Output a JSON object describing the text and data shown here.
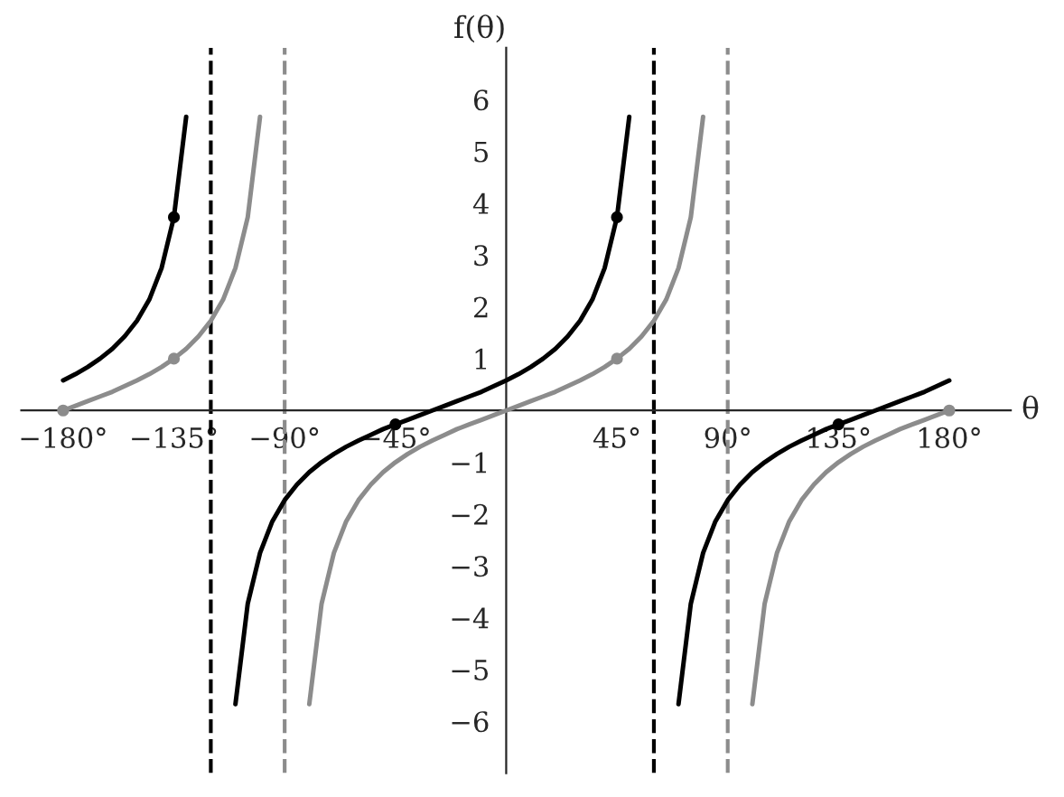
{
  "chart_data": {
    "type": "line",
    "xlabel": "θ",
    "ylabel": "f(θ)",
    "xlim": [
      -197,
      205
    ],
    "ylim": [
      -7,
      7
    ],
    "xticks": [
      {
        "value": -180,
        "label": "−180°"
      },
      {
        "value": -135,
        "label": "−135°"
      },
      {
        "value": -90,
        "label": "−90°"
      },
      {
        "value": -45,
        "label": "−45°"
      },
      {
        "value": 45,
        "label": "45°"
      },
      {
        "value": 90,
        "label": "90°"
      },
      {
        "value": 135,
        "label": "135°"
      },
      {
        "value": 180,
        "label": "180°"
      }
    ],
    "yticks": [
      {
        "value": -6,
        "label": "−6"
      },
      {
        "value": -5,
        "label": "−5"
      },
      {
        "value": -4,
        "label": "−4"
      },
      {
        "value": -3,
        "label": "−3"
      },
      {
        "value": -2,
        "label": "−2"
      },
      {
        "value": -1,
        "label": "−1"
      },
      1,
      2,
      3,
      4,
      5,
      6
    ],
    "grid": false,
    "legend": false,
    "line_style": "solid",
    "series": [
      {
        "color": "#8c8c8c",
        "x": [
          -180,
          -175,
          -170,
          -165,
          -160,
          -155,
          -150,
          -145,
          -140,
          -135,
          -130,
          -125,
          -120,
          -115,
          -110,
          -105,
          -100,
          -90,
          -80,
          -75,
          -70,
          -65,
          -60,
          -55,
          -50,
          -45,
          -40,
          -35,
          -30,
          -25,
          -20,
          -15,
          -10,
          -5,
          0,
          5,
          10,
          15,
          20,
          25,
          30,
          35,
          40,
          45,
          50,
          55,
          60,
          65,
          70,
          75,
          80,
          90,
          100,
          105,
          110,
          115,
          120,
          125,
          130,
          135,
          140,
          145,
          150,
          155,
          160,
          165,
          170,
          175,
          180
        ],
        "values": [
          0,
          0.09,
          0.18,
          0.27,
          0.36,
          0.47,
          0.58,
          0.7,
          0.84,
          1,
          1.19,
          1.43,
          1.73,
          2.14,
          2.75,
          3.73,
          5.67,
          null,
          -5.67,
          -3.73,
          -2.75,
          -2.14,
          -1.73,
          -1.43,
          -1.19,
          -1,
          -0.84,
          -0.7,
          -0.58,
          -0.47,
          -0.36,
          -0.27,
          -0.18,
          -0.09,
          0,
          0.09,
          0.18,
          0.27,
          0.36,
          0.47,
          0.58,
          0.7,
          0.84,
          1,
          1.19,
          1.43,
          1.73,
          2.14,
          2.75,
          3.73,
          5.67,
          null,
          -5.67,
          -3.73,
          -2.75,
          -2.14,
          -1.73,
          -1.43,
          -1.19,
          -1,
          -0.84,
          -0.7,
          -0.58,
          -0.47,
          -0.36,
          -0.27,
          -0.18,
          -0.09,
          0
        ]
      },
      {
        "color": "#000000",
        "x": [
          -180,
          -175,
          -170,
          -165,
          -160,
          -155,
          -150,
          -145,
          -140,
          -135,
          -130,
          -120,
          -110,
          -105,
          -100,
          -95,
          -90,
          -85,
          -80,
          -75,
          -70,
          -65,
          -60,
          -55,
          -50,
          -45,
          -40,
          -35,
          -30,
          -25,
          -20,
          -15,
          -10,
          -5,
          0,
          5,
          10,
          15,
          20,
          25,
          30,
          35,
          40,
          45,
          50,
          60,
          70,
          75,
          80,
          85,
          90,
          95,
          100,
          105,
          110,
          115,
          120,
          125,
          130,
          135,
          140,
          145,
          150,
          155,
          160,
          165,
          170,
          175,
          180
        ],
        "values": [
          0.58,
          0.7,
          0.84,
          1,
          1.19,
          1.43,
          1.73,
          2.14,
          2.75,
          3.73,
          5.67,
          null,
          -5.67,
          -3.73,
          -2.75,
          -2.14,
          -1.73,
          -1.43,
          -1.19,
          -1,
          -0.84,
          -0.7,
          -0.58,
          -0.47,
          -0.36,
          -0.27,
          -0.18,
          -0.09,
          0,
          0.09,
          0.18,
          0.27,
          0.36,
          0.47,
          0.58,
          0.7,
          0.84,
          1,
          1.19,
          1.43,
          1.73,
          2.14,
          2.75,
          3.73,
          5.67,
          null,
          -5.67,
          -3.73,
          -2.75,
          -2.14,
          -1.73,
          -1.43,
          -1.19,
          -1,
          -0.84,
          -0.7,
          -0.58,
          -0.47,
          -0.36,
          -0.27,
          -0.18,
          -0.09,
          0,
          0.09,
          0.18,
          0.27,
          0.36,
          0.47,
          0.58
        ]
      },
      {
        "type": "scatter",
        "marker": "circle",
        "color": "#8c8c8c",
        "x": [
          -180,
          -135,
          45,
          180
        ],
        "values": [
          0,
          1,
          1,
          0
        ]
      },
      {
        "type": "scatter",
        "marker": "circle",
        "color": "#000000",
        "x": [
          -135,
          -45,
          45,
          135
        ],
        "values": [
          3.73,
          -0.27,
          3.73,
          -0.27
        ]
      }
    ],
    "ref_lines": [
      {
        "axis": "x",
        "value": -120,
        "color": "#000000",
        "line_style": "dashed"
      },
      {
        "axis": "x",
        "value": 60,
        "color": "#000000",
        "line_style": "dashed"
      },
      {
        "axis": "x",
        "value": -90,
        "color": "#8c8c8c",
        "line_style": "dashed"
      },
      {
        "axis": "x",
        "value": 90,
        "color": "#8c8c8c",
        "line_style": "dashed"
      }
    ]
  }
}
